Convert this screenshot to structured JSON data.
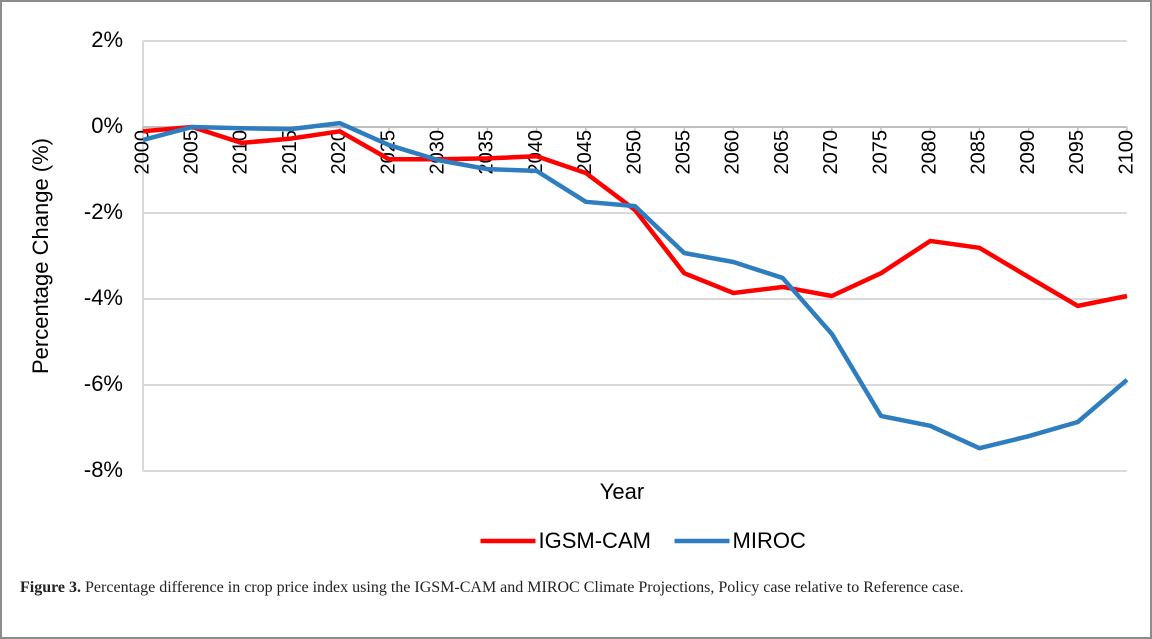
{
  "chart_data": {
    "type": "line",
    "x_label": "Year",
    "y_label": "Percentage Change (%)",
    "categories": [
      "2000",
      "2005",
      "2010",
      "2015",
      "2020",
      "2025",
      "2030",
      "2035",
      "2040",
      "2045",
      "2050",
      "2055",
      "2060",
      "2065",
      "2070",
      "2075",
      "2080",
      "2085",
      "2090",
      "2095",
      "2100"
    ],
    "series": [
      {
        "name": "IGSM-CAM",
        "color": "#ff0000",
        "values": [
          -0.1,
          0,
          -0.37,
          -0.27,
          -0.1,
          -0.75,
          -0.75,
          -0.73,
          -0.68,
          -1.07,
          -1.93,
          -3.4,
          -3.86,
          -3.72,
          -3.93,
          -3.4,
          -2.65,
          -2.81,
          -3.49,
          -4.16,
          -3.93
        ]
      },
      {
        "name": "MIROC",
        "color": "#2e7dbf",
        "values": [
          -0.3,
          0,
          -0.03,
          -0.05,
          0.09,
          -0.42,
          -0.77,
          -0.98,
          -1.02,
          -1.74,
          -1.84,
          -2.93,
          -3.14,
          -3.51,
          -4.81,
          -6.72,
          -6.95,
          -7.47,
          -7.19,
          -6.86,
          -5.88
        ]
      }
    ],
    "ylim": [
      -8,
      2
    ],
    "yticks": [
      {
        "value": -8,
        "label": "-8%"
      },
      {
        "value": -6,
        "label": "-6%"
      },
      {
        "value": -4,
        "label": "-4%"
      },
      {
        "value": -2,
        "label": "-2%"
      },
      {
        "value": 0,
        "label": "0%"
      },
      {
        "value": 2,
        "label": "2%"
      }
    ],
    "grid": true,
    "legend": "bottom"
  },
  "caption": {
    "label": "Figure 3.",
    "text": "Percentage difference in crop price index using the IGSM-CAM and MIROC Climate Projections, Policy case relative to Reference case."
  }
}
